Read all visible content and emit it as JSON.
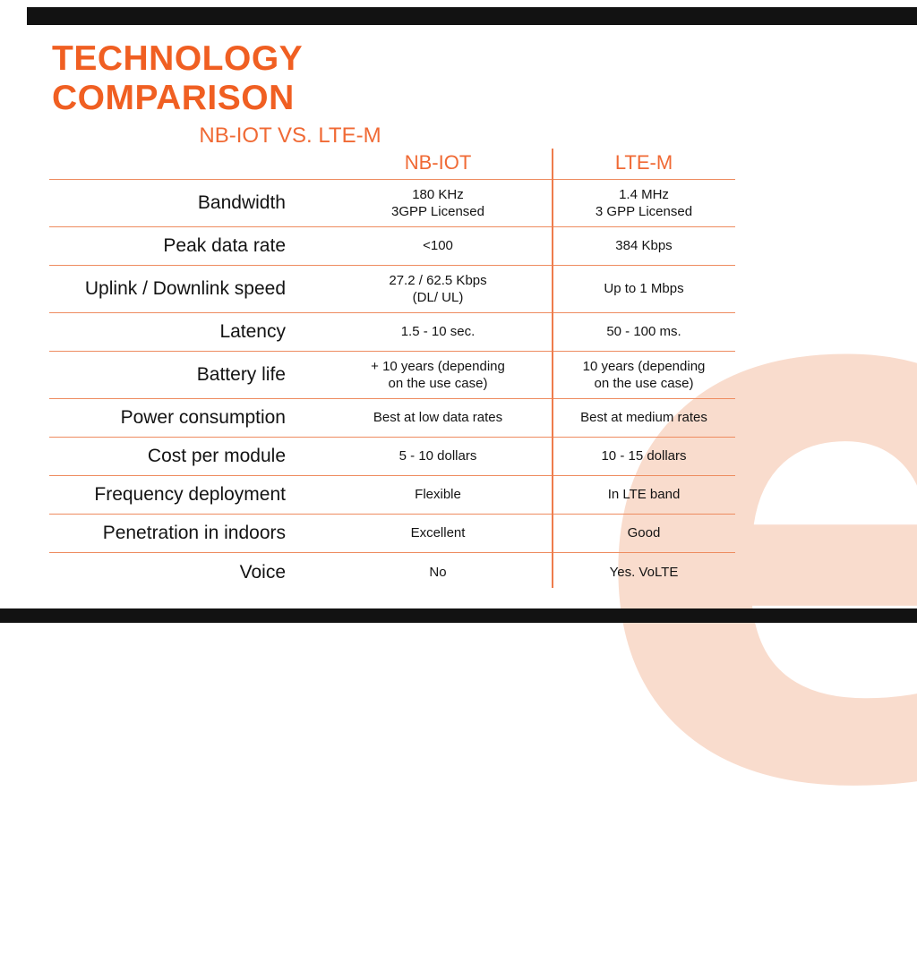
{
  "header": {
    "title": "TECHNOLOGY COMPARISON",
    "subtitle": "NB-IOT VS. LTE-M"
  },
  "chart_data": {
    "type": "table",
    "title": "TECHNOLOGY COMPARISON",
    "subtitle": "NB-IOT VS. LTE-M",
    "columns": [
      "NB-IOT",
      "LTE-M"
    ],
    "rows": [
      {
        "label": "Bandwidth",
        "nbiot": "180 KHz\n3GPP Licensed",
        "ltem": "1.4 MHz\n3 GPP Licensed"
      },
      {
        "label": "Peak data rate",
        "nbiot": "<100",
        "ltem": "384 Kbps"
      },
      {
        "label": "Uplink / Downlink speed",
        "nbiot": "27.2 / 62.5 Kbps\n(DL/ UL)",
        "ltem": "Up to 1 Mbps"
      },
      {
        "label": "Latency",
        "nbiot": "1.5 - 10 sec.",
        "ltem": "50 - 100 ms."
      },
      {
        "label": "Battery life",
        "nbiot": "+ 10 years (depending\non the use case)",
        "ltem": "10 years (depending\non the use case)"
      },
      {
        "label": "Power consumption",
        "nbiot": "Best at low data rates",
        "ltem": "Best at medium rates"
      },
      {
        "label": "Cost per module",
        "nbiot": "5 - 10 dollars",
        "ltem": "10 - 15 dollars"
      },
      {
        "label": "Frequency deployment",
        "nbiot": "Flexible",
        "ltem": "In LTE band"
      },
      {
        "label": "Penetration in indoors",
        "nbiot": "Excellent",
        "ltem": "Good"
      },
      {
        "label": "Voice",
        "nbiot": "No",
        "ltem": "Yes. VoLTE"
      }
    ],
    "layout": {
      "legend": "none",
      "grid": "horizontal row separators + center vertical divider"
    }
  },
  "watermark": {
    "glyph": "e"
  },
  "colors": {
    "accent_orange": "#f05f22",
    "line_orange": "#ee8c60",
    "divider_orange": "#ee7c4c",
    "bar_black": "#121212",
    "watermark_pink": "#f9dccd",
    "text_dark": "#131313"
  }
}
